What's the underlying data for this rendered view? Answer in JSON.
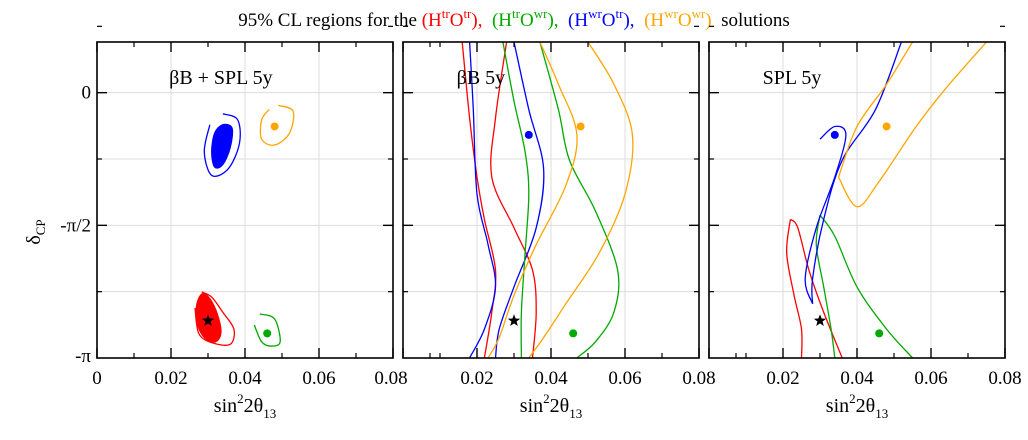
{
  "title": {
    "prefix": "95% CL regions for the ",
    "suffix": "solutions",
    "solutions": [
      {
        "H": "tr",
        "O": "tr",
        "color": "#ff0000",
        "sep": ","
      },
      {
        "H": "tr",
        "O": "wr",
        "color": "#00aa00",
        "sep": ","
      },
      {
        "H": "wr",
        "O": "tr",
        "color": "#0000ff",
        "sep": ","
      },
      {
        "H": "wr",
        "O": "wr",
        "color": "#ffa500",
        "sep": ""
      }
    ]
  },
  "chart_data": [
    {
      "type": "contour",
      "panel_label": "βB + SPL 5y",
      "xlabel_base": "sin",
      "xlabel_sup": "2",
      "xlabel_mid": "2θ",
      "xlabel_sub": "13",
      "ylabel_base": "δ",
      "ylabel_sub": "CP",
      "xlim": [
        0,
        0.08
      ],
      "ylim": [
        -3.1416,
        0.6
      ],
      "xticks": [
        0,
        0.02,
        0.04,
        0.06,
        0.08
      ],
      "xtick_labels": [
        "0",
        "0.02",
        "0.04",
        "0.06",
        "0.08"
      ],
      "yticks": [
        -3.1416,
        -1.5708,
        0
      ],
      "ytick_labels": [
        "-π",
        "-π/2",
        "0"
      ],
      "grid": true,
      "true_point": {
        "x": 0.03,
        "y": -2.7,
        "marker": "star"
      },
      "fit_points": [
        {
          "x": 0.046,
          "y": -2.85,
          "color": "#00aa00"
        },
        {
          "x": 0.048,
          "y": -0.4,
          "color": "#ffa500"
        }
      ],
      "contours": [
        {
          "color": "#ff0000",
          "filled": true,
          "points": [
            [
              0.0285,
              -2.38
            ],
            [
              0.0305,
              -2.44
            ],
            [
              0.0325,
              -2.62
            ],
            [
              0.0335,
              -2.84
            ],
            [
              0.032,
              -2.95
            ],
            [
              0.029,
              -2.9
            ],
            [
              0.027,
              -2.72
            ],
            [
              0.027,
              -2.5
            ]
          ]
        },
        {
          "color": "#ff0000",
          "filled": false,
          "points": [
            [
              0.0283,
              -2.36
            ],
            [
              0.031,
              -2.42
            ],
            [
              0.034,
              -2.6
            ],
            [
              0.037,
              -2.8
            ],
            [
              0.036,
              -2.98
            ],
            [
              0.031,
              -2.96
            ],
            [
              0.0275,
              -2.85
            ],
            [
              0.0265,
              -2.55
            ]
          ]
        },
        {
          "color": "#0000ff",
          "filled": true,
          "points": [
            [
              0.034,
              -0.38
            ],
            [
              0.0365,
              -0.42
            ],
            [
              0.036,
              -0.65
            ],
            [
              0.034,
              -0.85
            ],
            [
              0.0318,
              -0.88
            ],
            [
              0.031,
              -0.7
            ],
            [
              0.0318,
              -0.48
            ]
          ]
        },
        {
          "color": "#0000ff",
          "filled": false,
          "points": [
            [
              0.034,
              -0.25
            ],
            [
              0.038,
              -0.32
            ],
            [
              0.0385,
              -0.6
            ],
            [
              0.0355,
              -0.9
            ],
            [
              0.031,
              -0.98
            ],
            [
              0.029,
              -0.7
            ],
            [
              0.0305,
              -0.38
            ]
          ]
        },
        {
          "color": "#ffa500",
          "filled": false,
          "points": [
            [
              0.049,
              -0.15
            ],
            [
              0.053,
              -0.22
            ],
            [
              0.052,
              -0.48
            ],
            [
              0.048,
              -0.62
            ],
            [
              0.0445,
              -0.55
            ],
            [
              0.0445,
              -0.32
            ],
            [
              0.0465,
              -0.2
            ]
          ]
        },
        {
          "color": "#00aa00",
          "filled": false,
          "points": [
            [
              0.044,
              -2.62
            ],
            [
              0.048,
              -2.68
            ],
            [
              0.0495,
              -2.95
            ],
            [
              0.047,
              -3.0
            ],
            [
              0.0445,
              -2.95
            ],
            [
              0.0425,
              -2.75
            ]
          ]
        }
      ]
    },
    {
      "type": "contour",
      "panel_label": "βB 5y",
      "xlabel_base": "sin",
      "xlabel_sup": "2",
      "xlabel_mid": "2θ",
      "xlabel_sub": "13",
      "xlim": [
        0,
        0.08
      ],
      "ylim": [
        -3.1416,
        0.6
      ],
      "xticks": [
        0,
        0.02,
        0.04,
        0.06,
        0.08
      ],
      "xtick_labels": [
        "",
        "0.02",
        "0.04",
        "0.06",
        "0.08"
      ],
      "yticks": [
        -3.1416,
        -1.5708,
        0
      ],
      "grid": true,
      "true_point": {
        "x": 0.03,
        "y": -2.7,
        "marker": "star"
      },
      "fit_points": [
        {
          "x": 0.034,
          "y": -0.5,
          "color": "#0000ff"
        },
        {
          "x": 0.048,
          "y": -0.4,
          "color": "#ffa500"
        },
        {
          "x": 0.046,
          "y": -2.85,
          "color": "#00aa00"
        }
      ],
      "contours": [
        {
          "color": "#ff0000",
          "filled": false,
          "points": [
            [
              0.016,
              0.6
            ],
            [
              0.018,
              -0.3
            ],
            [
              0.02,
              -1.0
            ],
            [
              0.022,
              -1.5
            ],
            [
              0.025,
              -2.1
            ],
            [
              0.024,
              -2.6
            ],
            [
              0.022,
              -3.14
            ]
          ]
        },
        {
          "color": "#ff0000",
          "filled": false,
          "points": [
            [
              0.028,
              0.6
            ],
            [
              0.025,
              -0.3
            ],
            [
              0.024,
              -1.0
            ],
            [
              0.03,
              -1.6
            ],
            [
              0.035,
              -2.1
            ],
            [
              0.036,
              -2.6
            ],
            [
              0.035,
              -3.14
            ]
          ]
        },
        {
          "color": "#0000ff",
          "filled": false,
          "points": [
            [
              0.018,
              0.6
            ],
            [
              0.019,
              -0.2
            ],
            [
              0.02,
              -1.2
            ],
            [
              0.023,
              -1.8
            ],
            [
              0.025,
              -2.3
            ],
            [
              0.022,
              -2.8
            ],
            [
              0.018,
              -3.14
            ]
          ]
        },
        {
          "color": "#0000ff",
          "filled": false,
          "points": [
            [
              0.03,
              0.6
            ],
            [
              0.034,
              -0.2
            ],
            [
              0.038,
              -0.9
            ],
            [
              0.036,
              -1.6
            ],
            [
              0.03,
              -2.3
            ],
            [
              0.026,
              -2.8
            ],
            [
              0.025,
              -3.14
            ]
          ]
        },
        {
          "color": "#00aa00",
          "filled": false,
          "points": [
            [
              0.027,
              0.6
            ],
            [
              0.03,
              -0.1
            ],
            [
              0.033,
              -0.7
            ],
            [
              0.034,
              -1.2
            ],
            [
              0.033,
              -1.9
            ],
            [
              0.032,
              -2.6
            ],
            [
              0.032,
              -3.14
            ]
          ]
        },
        {
          "color": "#00aa00",
          "filled": false,
          "points": [
            [
              0.037,
              0.6
            ],
            [
              0.042,
              -0.2
            ],
            [
              0.045,
              -0.8
            ],
            [
              0.052,
              -1.4
            ],
            [
              0.058,
              -2.1
            ],
            [
              0.057,
              -2.6
            ],
            [
              0.052,
              -2.95
            ],
            [
              0.047,
              -3.14
            ]
          ]
        },
        {
          "color": "#ffa500",
          "filled": false,
          "points": [
            [
              0.037,
              0.6
            ],
            [
              0.042,
              0.1
            ],
            [
              0.047,
              -0.5
            ],
            [
              0.044,
              -1.1
            ],
            [
              0.036,
              -1.8
            ],
            [
              0.03,
              -2.4
            ],
            [
              0.026,
              -2.9
            ],
            [
              0.023,
              -3.14
            ]
          ]
        },
        {
          "color": "#ffa500",
          "filled": false,
          "points": [
            [
              0.05,
              0.6
            ],
            [
              0.057,
              0.1
            ],
            [
              0.062,
              -0.5
            ],
            [
              0.06,
              -1.2
            ],
            [
              0.053,
              -1.9
            ],
            [
              0.044,
              -2.5
            ],
            [
              0.038,
              -2.9
            ],
            [
              0.034,
              -3.14
            ]
          ]
        }
      ]
    },
    {
      "type": "contour",
      "panel_label": "SPL 5y",
      "xlabel_base": "sin",
      "xlabel_sup": "2",
      "xlabel_mid": "2θ",
      "xlabel_sub": "13",
      "xlim": [
        0,
        0.08
      ],
      "ylim": [
        -3.1416,
        0.6
      ],
      "xticks": [
        0,
        0.02,
        0.04,
        0.06,
        0.08
      ],
      "xtick_labels": [
        "",
        "0.02",
        "0.04",
        "0.06",
        "0.08"
      ],
      "yticks": [
        -3.1416,
        -1.5708,
        0
      ],
      "grid": true,
      "true_point": {
        "x": 0.03,
        "y": -2.7,
        "marker": "star"
      },
      "fit_points": [
        {
          "x": 0.034,
          "y": -0.5,
          "color": "#0000ff"
        },
        {
          "x": 0.048,
          "y": -0.4,
          "color": "#ffa500"
        },
        {
          "x": 0.046,
          "y": -2.85,
          "color": "#00aa00"
        }
      ],
      "contours": [
        {
          "color": "#ff0000",
          "filled": false,
          "points": [
            [
              0.022,
              -1.5
            ],
            [
              0.024,
              -1.6
            ],
            [
              0.027,
              -2.1
            ],
            [
              0.031,
              -2.6
            ],
            [
              0.036,
              -3.14
            ]
          ]
        },
        {
          "color": "#ff0000",
          "filled": false,
          "points": [
            [
              0.022,
              -1.5
            ],
            [
              0.021,
              -1.9
            ],
            [
              0.023,
              -2.4
            ],
            [
              0.025,
              -2.8
            ],
            [
              0.025,
              -3.14
            ]
          ]
        },
        {
          "color": "#00aa00",
          "filled": false,
          "points": [
            [
              0.03,
              -1.45
            ],
            [
              0.034,
              -1.7
            ],
            [
              0.04,
              -2.3
            ],
            [
              0.048,
              -2.8
            ],
            [
              0.055,
              -3.14
            ]
          ]
        },
        {
          "color": "#00aa00",
          "filled": false,
          "points": [
            [
              0.03,
              -1.45
            ],
            [
              0.029,
              -1.8
            ],
            [
              0.031,
              -2.3
            ],
            [
              0.033,
              -2.8
            ],
            [
              0.034,
              -3.14
            ]
          ]
        },
        {
          "color": "#0000ff",
          "filled": false,
          "points": [
            [
              0.052,
              0.6
            ],
            [
              0.045,
              -0.2
            ],
            [
              0.036,
              -0.8
            ],
            [
              0.031,
              -1.5
            ],
            [
              0.028,
              -2.2
            ],
            [
              0.028,
              -2.5
            ]
          ]
        },
        {
          "color": "#0000ff",
          "filled": false,
          "points": [
            [
              0.03,
              -0.55
            ],
            [
              0.034,
              -0.4
            ],
            [
              0.037,
              -0.5
            ],
            [
              0.034,
              -1.0
            ],
            [
              0.029,
              -1.6
            ],
            [
              0.026,
              -2.2
            ],
            [
              0.028,
              -2.5
            ]
          ]
        },
        {
          "color": "#ffa500",
          "filled": false,
          "points": [
            [
              0.035,
              -1.0
            ],
            [
              0.04,
              -0.4
            ],
            [
              0.048,
              0.1
            ],
            [
              0.055,
              0.6
            ]
          ]
        },
        {
          "color": "#ffa500",
          "filled": false,
          "points": [
            [
              0.035,
              -1.0
            ],
            [
              0.04,
              -1.35
            ],
            [
              0.046,
              -1.05
            ],
            [
              0.056,
              -0.4
            ],
            [
              0.064,
              0.05
            ],
            [
              0.075,
              0.6
            ]
          ]
        }
      ]
    }
  ]
}
